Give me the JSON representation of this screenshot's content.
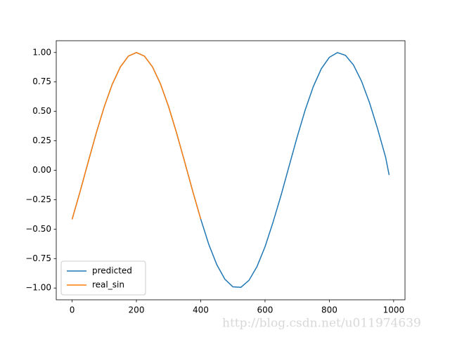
{
  "chart_data": {
    "type": "line",
    "series": [
      {
        "name": "predicted",
        "color": "#1f77b4",
        "x": [
          0,
          25,
          50,
          75,
          100,
          125,
          150,
          175,
          200,
          225,
          250,
          275,
          300,
          325,
          350,
          375,
          400,
          425,
          450,
          475,
          500,
          525,
          550,
          575,
          600,
          625,
          650,
          675,
          700,
          725,
          750,
          775,
          800,
          825,
          850,
          875,
          900,
          925,
          950,
          975,
          986
        ],
        "values": [
          -0.417,
          -0.179,
          0.07,
          0.315,
          0.54,
          0.731,
          0.877,
          0.969,
          1.0,
          0.969,
          0.878,
          0.732,
          0.541,
          0.316,
          0.072,
          -0.177,
          -0.414,
          -0.629,
          -0.802,
          -0.925,
          -0.99,
          -0.994,
          -0.935,
          -0.818,
          -0.65,
          -0.44,
          -0.211,
          0.037,
          0.283,
          0.513,
          0.71,
          0.862,
          0.959,
          0.999,
          0.976,
          0.894,
          0.757,
          0.573,
          0.353,
          0.111,
          -0.04
        ]
      },
      {
        "name": "real_sin",
        "color": "#ff7f0e",
        "x": [
          0,
          25,
          50,
          75,
          100,
          125,
          150,
          175,
          200,
          225,
          250,
          275,
          300,
          325,
          350,
          375,
          400
        ],
        "values": [
          -0.417,
          -0.179,
          0.07,
          0.315,
          0.54,
          0.731,
          0.877,
          0.969,
          1.0,
          0.969,
          0.878,
          0.732,
          0.541,
          0.316,
          0.072,
          -0.177,
          -0.414
        ]
      }
    ],
    "xlim": [
      -49.3,
      1035.3
    ],
    "ylim": [
      -1.1,
      1.1
    ],
    "xticks": [
      0,
      200,
      400,
      600,
      800,
      1000
    ],
    "yticks": [
      {
        "value": -1,
        "label": "−1.00"
      },
      {
        "value": -0.75,
        "label": "−0.75"
      },
      {
        "value": -0.5,
        "label": "−0.50"
      },
      {
        "value": -0.25,
        "label": "−0.25"
      },
      {
        "value": 0,
        "label": "0.00"
      },
      {
        "value": 0.25,
        "label": "0.25"
      },
      {
        "value": 0.5,
        "label": "0.50"
      },
      {
        "value": 0.75,
        "label": "0.75"
      },
      {
        "value": 1,
        "label": "1.00"
      }
    ],
    "legend": "lower left",
    "watermark": "http://blog.csdn.net/u011974639"
  }
}
